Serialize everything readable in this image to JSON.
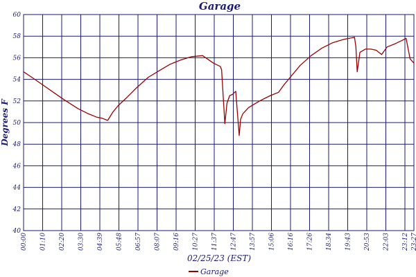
{
  "chart_data": {
    "type": "line",
    "title": "Garage",
    "xlabel": "02/25/23 (EST)",
    "ylabel": "Degrees F",
    "ylim": [
      40,
      60
    ],
    "xlim": [
      0,
      1439
    ],
    "grid": true,
    "legend_position": "bottom-center",
    "colors": {
      "line": "#990000",
      "grid": "#1a1a6e",
      "text": "#1a1a6e"
    },
    "yticks": [
      "40",
      "42",
      "44",
      "46",
      "48",
      "50",
      "52",
      "54",
      "56",
      "58",
      "60"
    ],
    "xticks": [
      "00:00",
      "01:10",
      "02:20",
      "03:30",
      "04:39",
      "05:48",
      "06:57",
      "08:07",
      "09:16",
      "10:27",
      "11:37",
      "12:47",
      "13:57",
      "15:06",
      "16:16",
      "17:26",
      "18:34",
      "19:43",
      "20:53",
      "22:03",
      "23:12",
      "23:27"
    ],
    "series": [
      {
        "name": "Garage",
        "x": [
          0,
          30,
          70,
          110,
          150,
          200,
          240,
          270,
          290,
          310,
          330,
          350,
          380,
          420,
          460,
          500,
          540,
          580,
          620,
          660,
          700,
          725,
          730,
          742,
          750,
          760,
          770,
          778,
          782,
          795,
          800,
          808,
          815,
          830,
          870,
          910,
          940,
          960,
          980,
          1020,
          1060,
          1100,
          1140,
          1180,
          1220,
          1225,
          1230,
          1240,
          1260,
          1280,
          1300,
          1320,
          1340,
          1370,
          1395,
          1410,
          1425,
          1439
        ],
        "y": [
          54.7,
          54.2,
          53.5,
          52.8,
          52.1,
          51.3,
          50.8,
          50.5,
          50.4,
          50.2,
          51.0,
          51.6,
          52.3,
          53.3,
          54.2,
          54.8,
          55.4,
          55.8,
          56.1,
          56.2,
          55.5,
          55.2,
          54.9,
          49.9,
          51.8,
          52.5,
          52.6,
          52.8,
          52.9,
          48.8,
          50.3,
          50.8,
          51.0,
          51.4,
          52.0,
          52.5,
          52.8,
          53.5,
          54.1,
          55.3,
          56.2,
          56.9,
          57.4,
          57.7,
          57.9,
          57.0,
          54.7,
          56.5,
          56.8,
          56.8,
          56.7,
          56.3,
          57.0,
          57.3,
          57.6,
          57.8,
          55.9,
          55.5
        ]
      }
    ]
  }
}
